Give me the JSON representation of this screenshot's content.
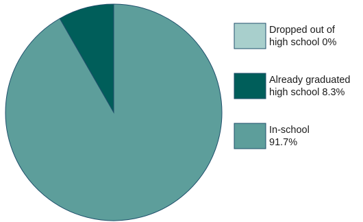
{
  "chart_data": {
    "type": "pie",
    "start_angle": "top, clockwise",
    "series": [
      {
        "name_lines": [
          "Dropped out of",
          "high school 0%"
        ],
        "value": 0,
        "color": "#a8cfcc"
      },
      {
        "name_lines": [
          "Already graduated",
          "high school 8.3%"
        ],
        "value": 8.3,
        "color": "#005e5a"
      },
      {
        "name_lines": [
          "In-school",
          "91.7%"
        ],
        "value": 91.7,
        "color": "#5d9e9b"
      }
    ],
    "outline_color": "#1f4f6b",
    "legend_position": "right"
  }
}
